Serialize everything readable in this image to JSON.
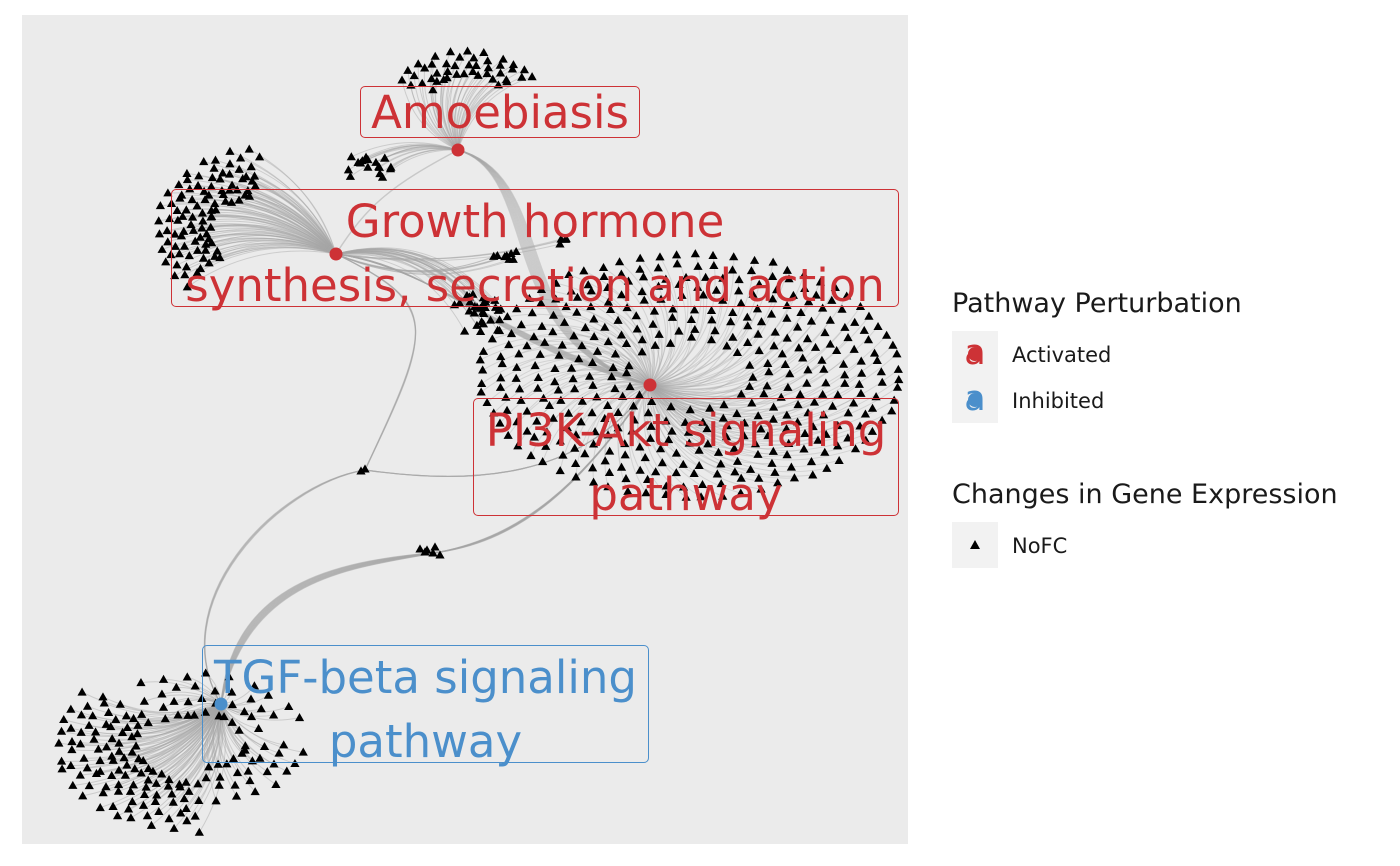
{
  "pathways": [
    {
      "id": "amoebiasis",
      "label_lines": [
        "Amoebiasis"
      ],
      "status": "Activated"
    },
    {
      "id": "growth",
      "label_lines": [
        "Growth hormone",
        "synthesis, secretion and action"
      ],
      "status": "Activated"
    },
    {
      "id": "pi3k",
      "label_lines": [
        "PI3K-Akt signaling",
        "pathway"
      ],
      "status": "Activated"
    },
    {
      "id": "tgf",
      "label_lines": [
        "TGF-beta signaling",
        "pathway"
      ],
      "status": "Inhibited"
    }
  ],
  "gene_nodes": {
    "shape": "triangle",
    "status": "NoFC",
    "color": "#000000"
  },
  "edge_color": "#a6a6a6",
  "legend": {
    "perturbation": {
      "title": "Pathway Perturbation",
      "items": [
        {
          "label": "Activated",
          "glyph": "a",
          "color": "#cd3236"
        },
        {
          "label": "Inhibited",
          "glyph": "a",
          "color": "#4b8fcb"
        }
      ]
    },
    "expression": {
      "title": "Changes in Gene Expression",
      "items": [
        {
          "label": "NoFC",
          "icon": "triangle-icon",
          "color": "#000000"
        }
      ]
    }
  },
  "colors": {
    "activated": "#cd3236",
    "inhibited": "#4b8fcb",
    "panel_background": "#ebebeb"
  }
}
